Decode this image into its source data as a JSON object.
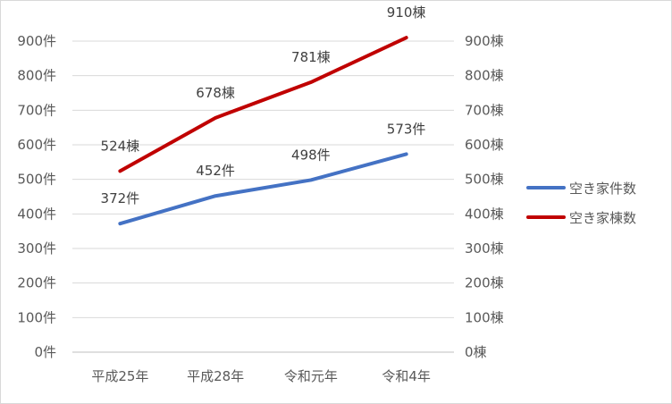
{
  "chart_data": {
    "type": "line",
    "title": "",
    "categories": [
      "平成25年",
      "平成28年",
      "令和元年",
      "令和4年"
    ],
    "series": [
      {
        "name": "空き家件数",
        "axis": "left",
        "color": "#4472C4",
        "values": [
          372,
          452,
          498,
          573
        ],
        "labels": [
          "372件",
          "452件",
          "498件",
          "573件"
        ]
      },
      {
        "name": "空き家棟数",
        "axis": "right",
        "color": "#C00000",
        "values": [
          524,
          678,
          781,
          910
        ],
        "labels": [
          "524棟",
          "678棟",
          "781棟",
          "910棟"
        ]
      }
    ],
    "y_left": {
      "range": [
        0,
        900
      ],
      "ticks": [
        0,
        100,
        200,
        300,
        400,
        500,
        600,
        700,
        800,
        900
      ],
      "tick_labels": [
        "0件",
        "100件",
        "200件",
        "300件",
        "400件",
        "500件",
        "600件",
        "700件",
        "800件",
        "900件"
      ]
    },
    "y_right": {
      "range": [
        0,
        900
      ],
      "ticks": [
        0,
        100,
        200,
        300,
        400,
        500,
        600,
        700,
        800,
        900
      ],
      "tick_labels": [
        "0棟",
        "100棟",
        "200棟",
        "300棟",
        "400棟",
        "500棟",
        "600棟",
        "700棟",
        "800棟",
        "900棟"
      ]
    },
    "grid": true,
    "legend_position": "right"
  }
}
